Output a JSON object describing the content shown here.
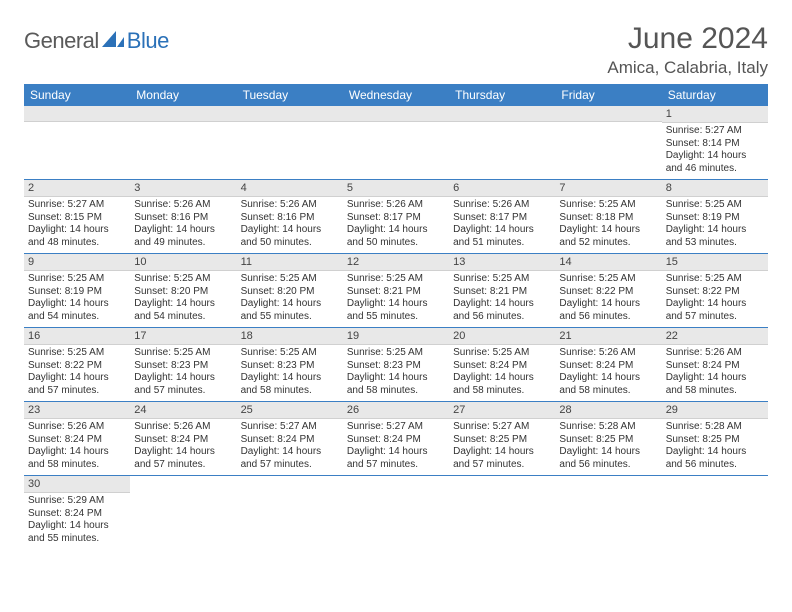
{
  "logo": {
    "part1": "General",
    "part2": "Blue"
  },
  "title": "June 2024",
  "location": "Amica, Calabria, Italy",
  "colors": {
    "header_bg": "#3b7fc4",
    "header_text": "#ffffff",
    "daynum_bg": "#e8e8e8",
    "row_divider": "#3b7fc4",
    "logo_gray": "#5a5a5a",
    "logo_blue": "#2b71b8",
    "title_color": "#555555",
    "body_text": "#333333"
  },
  "day_names": [
    "Sunday",
    "Monday",
    "Tuesday",
    "Wednesday",
    "Thursday",
    "Friday",
    "Saturday"
  ],
  "weeks": [
    [
      {
        "n": "",
        "sr": "",
        "ss": "",
        "dl": ""
      },
      {
        "n": "",
        "sr": "",
        "ss": "",
        "dl": ""
      },
      {
        "n": "",
        "sr": "",
        "ss": "",
        "dl": ""
      },
      {
        "n": "",
        "sr": "",
        "ss": "",
        "dl": ""
      },
      {
        "n": "",
        "sr": "",
        "ss": "",
        "dl": ""
      },
      {
        "n": "",
        "sr": "",
        "ss": "",
        "dl": ""
      },
      {
        "n": "1",
        "sr": "Sunrise: 5:27 AM",
        "ss": "Sunset: 8:14 PM",
        "dl": "Daylight: 14 hours and 46 minutes."
      }
    ],
    [
      {
        "n": "2",
        "sr": "Sunrise: 5:27 AM",
        "ss": "Sunset: 8:15 PM",
        "dl": "Daylight: 14 hours and 48 minutes."
      },
      {
        "n": "3",
        "sr": "Sunrise: 5:26 AM",
        "ss": "Sunset: 8:16 PM",
        "dl": "Daylight: 14 hours and 49 minutes."
      },
      {
        "n": "4",
        "sr": "Sunrise: 5:26 AM",
        "ss": "Sunset: 8:16 PM",
        "dl": "Daylight: 14 hours and 50 minutes."
      },
      {
        "n": "5",
        "sr": "Sunrise: 5:26 AM",
        "ss": "Sunset: 8:17 PM",
        "dl": "Daylight: 14 hours and 50 minutes."
      },
      {
        "n": "6",
        "sr": "Sunrise: 5:26 AM",
        "ss": "Sunset: 8:17 PM",
        "dl": "Daylight: 14 hours and 51 minutes."
      },
      {
        "n": "7",
        "sr": "Sunrise: 5:25 AM",
        "ss": "Sunset: 8:18 PM",
        "dl": "Daylight: 14 hours and 52 minutes."
      },
      {
        "n": "8",
        "sr": "Sunrise: 5:25 AM",
        "ss": "Sunset: 8:19 PM",
        "dl": "Daylight: 14 hours and 53 minutes."
      }
    ],
    [
      {
        "n": "9",
        "sr": "Sunrise: 5:25 AM",
        "ss": "Sunset: 8:19 PM",
        "dl": "Daylight: 14 hours and 54 minutes."
      },
      {
        "n": "10",
        "sr": "Sunrise: 5:25 AM",
        "ss": "Sunset: 8:20 PM",
        "dl": "Daylight: 14 hours and 54 minutes."
      },
      {
        "n": "11",
        "sr": "Sunrise: 5:25 AM",
        "ss": "Sunset: 8:20 PM",
        "dl": "Daylight: 14 hours and 55 minutes."
      },
      {
        "n": "12",
        "sr": "Sunrise: 5:25 AM",
        "ss": "Sunset: 8:21 PM",
        "dl": "Daylight: 14 hours and 55 minutes."
      },
      {
        "n": "13",
        "sr": "Sunrise: 5:25 AM",
        "ss": "Sunset: 8:21 PM",
        "dl": "Daylight: 14 hours and 56 minutes."
      },
      {
        "n": "14",
        "sr": "Sunrise: 5:25 AM",
        "ss": "Sunset: 8:22 PM",
        "dl": "Daylight: 14 hours and 56 minutes."
      },
      {
        "n": "15",
        "sr": "Sunrise: 5:25 AM",
        "ss": "Sunset: 8:22 PM",
        "dl": "Daylight: 14 hours and 57 minutes."
      }
    ],
    [
      {
        "n": "16",
        "sr": "Sunrise: 5:25 AM",
        "ss": "Sunset: 8:22 PM",
        "dl": "Daylight: 14 hours and 57 minutes."
      },
      {
        "n": "17",
        "sr": "Sunrise: 5:25 AM",
        "ss": "Sunset: 8:23 PM",
        "dl": "Daylight: 14 hours and 57 minutes."
      },
      {
        "n": "18",
        "sr": "Sunrise: 5:25 AM",
        "ss": "Sunset: 8:23 PM",
        "dl": "Daylight: 14 hours and 58 minutes."
      },
      {
        "n": "19",
        "sr": "Sunrise: 5:25 AM",
        "ss": "Sunset: 8:23 PM",
        "dl": "Daylight: 14 hours and 58 minutes."
      },
      {
        "n": "20",
        "sr": "Sunrise: 5:25 AM",
        "ss": "Sunset: 8:24 PM",
        "dl": "Daylight: 14 hours and 58 minutes."
      },
      {
        "n": "21",
        "sr": "Sunrise: 5:26 AM",
        "ss": "Sunset: 8:24 PM",
        "dl": "Daylight: 14 hours and 58 minutes."
      },
      {
        "n": "22",
        "sr": "Sunrise: 5:26 AM",
        "ss": "Sunset: 8:24 PM",
        "dl": "Daylight: 14 hours and 58 minutes."
      }
    ],
    [
      {
        "n": "23",
        "sr": "Sunrise: 5:26 AM",
        "ss": "Sunset: 8:24 PM",
        "dl": "Daylight: 14 hours and 58 minutes."
      },
      {
        "n": "24",
        "sr": "Sunrise: 5:26 AM",
        "ss": "Sunset: 8:24 PM",
        "dl": "Daylight: 14 hours and 57 minutes."
      },
      {
        "n": "25",
        "sr": "Sunrise: 5:27 AM",
        "ss": "Sunset: 8:24 PM",
        "dl": "Daylight: 14 hours and 57 minutes."
      },
      {
        "n": "26",
        "sr": "Sunrise: 5:27 AM",
        "ss": "Sunset: 8:24 PM",
        "dl": "Daylight: 14 hours and 57 minutes."
      },
      {
        "n": "27",
        "sr": "Sunrise: 5:27 AM",
        "ss": "Sunset: 8:25 PM",
        "dl": "Daylight: 14 hours and 57 minutes."
      },
      {
        "n": "28",
        "sr": "Sunrise: 5:28 AM",
        "ss": "Sunset: 8:25 PM",
        "dl": "Daylight: 14 hours and 56 minutes."
      },
      {
        "n": "29",
        "sr": "Sunrise: 5:28 AM",
        "ss": "Sunset: 8:25 PM",
        "dl": "Daylight: 14 hours and 56 minutes."
      }
    ],
    [
      {
        "n": "30",
        "sr": "Sunrise: 5:29 AM",
        "ss": "Sunset: 8:24 PM",
        "dl": "Daylight: 14 hours and 55 minutes."
      },
      {
        "n": "",
        "sr": "",
        "ss": "",
        "dl": ""
      },
      {
        "n": "",
        "sr": "",
        "ss": "",
        "dl": ""
      },
      {
        "n": "",
        "sr": "",
        "ss": "",
        "dl": ""
      },
      {
        "n": "",
        "sr": "",
        "ss": "",
        "dl": ""
      },
      {
        "n": "",
        "sr": "",
        "ss": "",
        "dl": ""
      },
      {
        "n": "",
        "sr": "",
        "ss": "",
        "dl": ""
      }
    ]
  ]
}
